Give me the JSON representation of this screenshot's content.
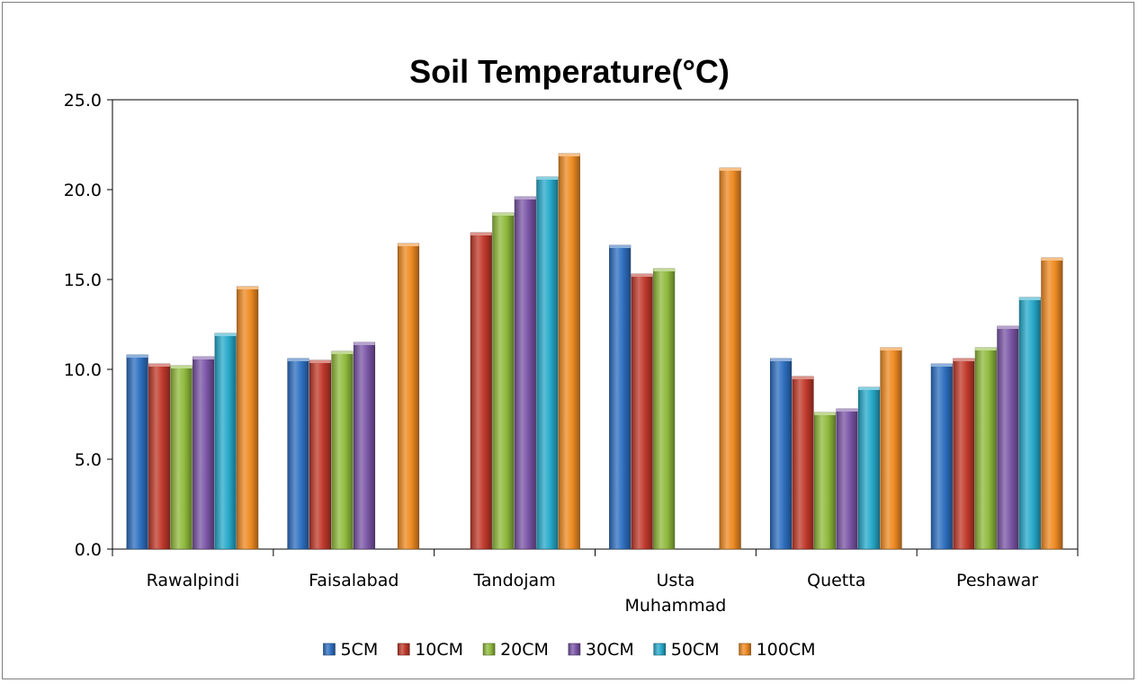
{
  "chart_data": {
    "type": "bar",
    "title": "Soil Temperature(°C)",
    "xlabel": "",
    "ylabel": "",
    "categories": [
      "Rawalpindi",
      "Faisalabad",
      "Tandojam",
      "Usta Muhammad",
      "Quetta",
      "Peshawar"
    ],
    "category_lines": [
      [
        "Rawalpindi"
      ],
      [
        "Faisalabad"
      ],
      [
        "Tandojam"
      ],
      [
        "Usta",
        "Muhammad"
      ],
      [
        "Quetta"
      ],
      [
        "Peshawar"
      ]
    ],
    "series": [
      {
        "name": "5CM",
        "color": "#2e6fc0",
        "values": [
          10.8,
          10.6,
          null,
          16.9,
          10.6,
          10.3
        ]
      },
      {
        "name": "10CM",
        "color": "#c0392b",
        "values": [
          10.3,
          10.5,
          17.6,
          15.3,
          9.6,
          10.6
        ]
      },
      {
        "name": "20CM",
        "color": "#8fb93c",
        "values": [
          10.2,
          11.0,
          18.7,
          15.6,
          7.6,
          11.2
        ]
      },
      {
        "name": "30CM",
        "color": "#7a55a6",
        "values": [
          10.7,
          11.5,
          19.6,
          null,
          7.8,
          12.4
        ]
      },
      {
        "name": "50CM",
        "color": "#27a9c9",
        "values": [
          12.0,
          null,
          20.7,
          null,
          9.0,
          14.0
        ]
      },
      {
        "name": "100CM",
        "color": "#ee8a22",
        "values": [
          14.6,
          17.0,
          22.0,
          21.2,
          11.2,
          16.2
        ]
      }
    ],
    "ylim": [
      0,
      25
    ],
    "yticks": [
      "0.0",
      "5.0",
      "10.0",
      "15.0",
      "20.0",
      "25.0"
    ],
    "grid": false,
    "legend_position": "bottom"
  }
}
